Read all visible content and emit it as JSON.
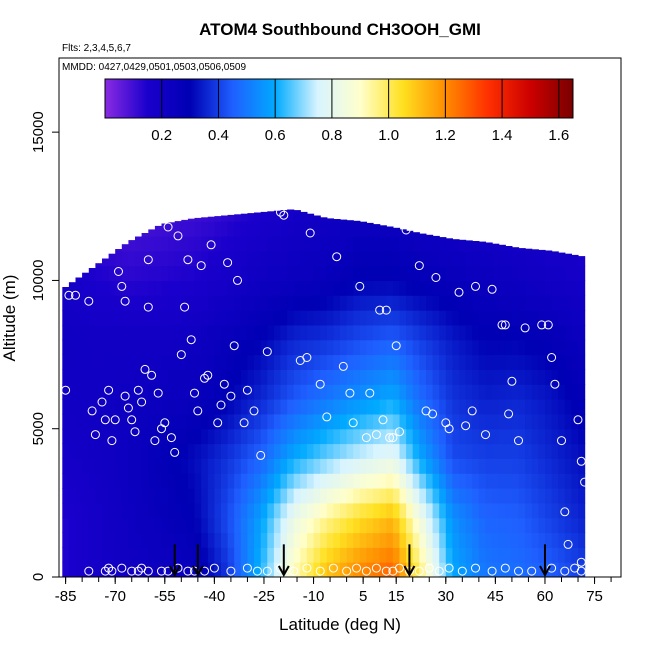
{
  "chart_data": {
    "type": "heatmap",
    "title": "ATOM4 Southbound CH3OOH_GMI",
    "subtitle_flights": "Flts: 2,3,4,5,6,7",
    "subtitle_dates": "MMDD: 0427,0429,0501,0503,0506,0509",
    "xlabel": "Latitude (deg N)",
    "ylabel": "Altitude (m)",
    "xlim": [
      -87,
      83
    ],
    "ylim": [
      0,
      17500
    ],
    "x_ticks": [
      -85,
      -70,
      -55,
      -40,
      -25,
      -10,
      5,
      15,
      30,
      45,
      60,
      75
    ],
    "y_ticks": [
      0,
      5000,
      10000,
      15000
    ],
    "colorbar": {
      "range": [
        0,
        1.65
      ],
      "ticks": [
        0.2,
        0.4,
        0.6,
        0.8,
        1.0,
        1.2,
        1.4,
        1.6
      ],
      "tick_labels": [
        "0.2",
        "0.4",
        "0.6",
        "0.8",
        "1.0",
        "1.2",
        "1.4",
        "1.6"
      ],
      "colors": [
        "#8a2be2",
        "#1a00cc",
        "#0000b4",
        "#1f5fff",
        "#00aaff",
        "#d8f4ff",
        "#ffffcc",
        "#ffe020",
        "#ff8c00",
        "#ff3000",
        "#cc0000",
        "#7a0000"
      ]
    },
    "field_columns": [
      {
        "lat": -86,
        "top": 9700,
        "alt": [
          0,
          2000,
          4000,
          6000,
          8000,
          10000,
          12500
        ],
        "val": [
          0.14,
          0.14,
          0.18,
          0.2,
          0.22,
          0.18,
          0.12
        ]
      },
      {
        "lat": -76,
        "top": 10500,
        "alt": [
          0,
          2000,
          4000,
          6000,
          8000,
          10000,
          12500
        ],
        "val": [
          0.18,
          0.18,
          0.2,
          0.21,
          0.2,
          0.15,
          0.1
        ]
      },
      {
        "lat": -66,
        "top": 11300,
        "alt": [
          0,
          2000,
          4000,
          6000,
          8000,
          10000,
          12500
        ],
        "val": [
          0.21,
          0.22,
          0.23,
          0.22,
          0.2,
          0.13,
          0.08
        ]
      },
      {
        "lat": -56,
        "top": 11900,
        "alt": [
          0,
          2000,
          4000,
          6000,
          8000,
          10000,
          12500
        ],
        "val": [
          0.22,
          0.26,
          0.28,
          0.24,
          0.2,
          0.14,
          0.09
        ]
      },
      {
        "lat": -46,
        "top": 12100,
        "alt": [
          0,
          2000,
          4000,
          6000,
          8000,
          10000,
          12500
        ],
        "val": [
          0.25,
          0.3,
          0.32,
          0.25,
          0.22,
          0.15,
          0.1
        ]
      },
      {
        "lat": -36,
        "top": 12200,
        "alt": [
          0,
          2000,
          4000,
          6000,
          8000,
          10000,
          12500
        ],
        "val": [
          0.38,
          0.42,
          0.38,
          0.3,
          0.26,
          0.18,
          0.12
        ]
      },
      {
        "lat": -26,
        "top": 12300,
        "alt": [
          0,
          2000,
          4000,
          6000,
          8000,
          10000,
          12500
        ],
        "val": [
          0.62,
          0.58,
          0.46,
          0.36,
          0.3,
          0.22,
          0.15
        ]
      },
      {
        "lat": -16,
        "top": 12400,
        "alt": [
          0,
          2000,
          4000,
          6000,
          8000,
          10000,
          12500
        ],
        "val": [
          0.92,
          0.82,
          0.6,
          0.44,
          0.36,
          0.24,
          0.18
        ]
      },
      {
        "lat": -6,
        "top": 12100,
        "alt": [
          0,
          2000,
          4000,
          6000,
          8000,
          10000,
          12500
        ],
        "val": [
          1.12,
          0.95,
          0.68,
          0.5,
          0.38,
          0.26,
          0.2
        ]
      },
      {
        "lat": 4,
        "top": 12000,
        "alt": [
          0,
          2000,
          4000,
          6000,
          8000,
          10000,
          12500
        ],
        "val": [
          1.22,
          1.05,
          0.75,
          0.55,
          0.42,
          0.3,
          0.22
        ]
      },
      {
        "lat": 14,
        "top": 11800,
        "alt": [
          0,
          2000,
          4000,
          6000,
          8000,
          10000,
          12500
        ],
        "val": [
          1.28,
          1.12,
          0.8,
          0.6,
          0.45,
          0.3,
          0.22
        ]
      },
      {
        "lat": 22,
        "top": 11600,
        "alt": [
          0,
          2000,
          4000,
          6000,
          8000,
          10000,
          12500
        ],
        "val": [
          1.0,
          0.85,
          0.6,
          0.48,
          0.4,
          0.28,
          0.2
        ]
      },
      {
        "lat": 32,
        "top": 11400,
        "alt": [
          0,
          2000,
          4000,
          6000,
          8000,
          10000,
          12500
        ],
        "val": [
          0.6,
          0.55,
          0.42,
          0.38,
          0.34,
          0.26,
          0.18
        ]
      },
      {
        "lat": 42,
        "top": 11300,
        "alt": [
          0,
          2000,
          4000,
          6000,
          8000,
          10000,
          12500
        ],
        "val": [
          0.5,
          0.46,
          0.4,
          0.35,
          0.3,
          0.24,
          0.17
        ]
      },
      {
        "lat": 52,
        "top": 11100,
        "alt": [
          0,
          2000,
          4000,
          6000,
          8000,
          10000,
          12500
        ],
        "val": [
          0.48,
          0.45,
          0.4,
          0.36,
          0.3,
          0.22,
          0.16
        ]
      },
      {
        "lat": 62,
        "top": 11000,
        "alt": [
          0,
          2000,
          4000,
          6000,
          8000,
          10000,
          12500
        ],
        "val": [
          0.45,
          0.4,
          0.36,
          0.33,
          0.28,
          0.2,
          0.15
        ]
      },
      {
        "lat": 72,
        "top": 10800,
        "alt": [
          0,
          2000,
          4000,
          6000,
          8000,
          10000,
          12500
        ],
        "val": [
          0.4,
          0.35,
          0.32,
          0.28,
          0.24,
          0.18,
          0.14
        ]
      }
    ],
    "observations": [
      [
        -85,
        6300
      ],
      [
        -84,
        9500
      ],
      [
        -82,
        9500
      ],
      [
        -78,
        9300
      ],
      [
        -77,
        5600
      ],
      [
        -76,
        4800
      ],
      [
        -74,
        5900
      ],
      [
        -73,
        5300
      ],
      [
        -72,
        6300
      ],
      [
        -71,
        4600
      ],
      [
        -70,
        5300
      ],
      [
        -69,
        10300
      ],
      [
        -68,
        9800
      ],
      [
        -67,
        9300
      ],
      [
        -67,
        6100
      ],
      [
        -66,
        5700
      ],
      [
        -65,
        5300
      ],
      [
        -64,
        4900
      ],
      [
        -63,
        6300
      ],
      [
        -62,
        5900
      ],
      [
        -61,
        7000
      ],
      [
        -60,
        10700
      ],
      [
        -60,
        9100
      ],
      [
        -59,
        6800
      ],
      [
        -58,
        4600
      ],
      [
        -57,
        6200
      ],
      [
        -56,
        5000
      ],
      [
        -55,
        5200
      ],
      [
        -54,
        11800
      ],
      [
        -53,
        4700
      ],
      [
        -52,
        4200
      ],
      [
        -51,
        11500
      ],
      [
        -50,
        7500
      ],
      [
        -49,
        9100
      ],
      [
        -48,
        10700
      ],
      [
        -47,
        8000
      ],
      [
        -46,
        6200
      ],
      [
        -45,
        5600
      ],
      [
        -44,
        10500
      ],
      [
        -43,
        6700
      ],
      [
        -42,
        6800
      ],
      [
        -41,
        11200
      ],
      [
        -39,
        5200
      ],
      [
        -38,
        5800
      ],
      [
        -37,
        6500
      ],
      [
        -36,
        10600
      ],
      [
        -35,
        6100
      ],
      [
        -34,
        7800
      ],
      [
        -33,
        10000
      ],
      [
        -31,
        5200
      ],
      [
        -30,
        6300
      ],
      [
        -28,
        5600
      ],
      [
        -26,
        4100
      ],
      [
        -24,
        7600
      ],
      [
        -20,
        12300
      ],
      [
        -19,
        12200
      ],
      [
        -14,
        7300
      ],
      [
        -12,
        7400
      ],
      [
        -11,
        11600
      ],
      [
        -8,
        6500
      ],
      [
        -6,
        5400
      ],
      [
        -3,
        10800
      ],
      [
        -1,
        7100
      ],
      [
        1,
        6200
      ],
      [
        2,
        5200
      ],
      [
        4,
        9800
      ],
      [
        6,
        4700
      ],
      [
        7,
        6200
      ],
      [
        9,
        4800
      ],
      [
        10,
        9000
      ],
      [
        11,
        5300
      ],
      [
        12,
        9000
      ],
      [
        13,
        4700
      ],
      [
        14,
        4700
      ],
      [
        15,
        7800
      ],
      [
        16,
        4900
      ],
      [
        18,
        11700
      ],
      [
        22,
        10500
      ],
      [
        24,
        5600
      ],
      [
        26,
        5500
      ],
      [
        27,
        10100
      ],
      [
        30,
        5200
      ],
      [
        31,
        5000
      ],
      [
        34,
        9600
      ],
      [
        36,
        5100
      ],
      [
        38,
        5600
      ],
      [
        39,
        9800
      ],
      [
        42,
        4800
      ],
      [
        44,
        9700
      ],
      [
        47,
        8500
      ],
      [
        48,
        8500
      ],
      [
        49,
        5500
      ],
      [
        50,
        6600
      ],
      [
        52,
        4600
      ],
      [
        54,
        8400
      ],
      [
        56,
        11500
      ],
      [
        59,
        8500
      ],
      [
        61,
        8500
      ],
      [
        62,
        7400
      ],
      [
        63,
        6500
      ],
      [
        65,
        4600
      ],
      [
        66,
        2200
      ],
      [
        67,
        1100
      ],
      [
        70,
        5300
      ],
      [
        71,
        3900
      ],
      [
        72,
        3200
      ],
      [
        -78,
        200
      ],
      [
        -73,
        200
      ],
      [
        -72,
        300
      ],
      [
        -71,
        200
      ],
      [
        -68,
        300
      ],
      [
        -65,
        200
      ],
      [
        -63,
        200
      ],
      [
        -62,
        300
      ],
      [
        -60,
        200
      ],
      [
        -56,
        200
      ],
      [
        -54,
        200
      ],
      [
        -51,
        300
      ],
      [
        -48,
        200
      ],
      [
        -46,
        200
      ],
      [
        -43,
        200
      ],
      [
        -40,
        300
      ],
      [
        -35,
        200
      ],
      [
        -30,
        300
      ],
      [
        -27,
        200
      ],
      [
        -24,
        200
      ],
      [
        -20,
        300
      ],
      [
        -16,
        200
      ],
      [
        -12,
        300
      ],
      [
        -8,
        200
      ],
      [
        -4,
        300
      ],
      [
        0,
        200
      ],
      [
        3,
        300
      ],
      [
        6,
        200
      ],
      [
        9,
        300
      ],
      [
        12,
        200
      ],
      [
        14,
        200
      ],
      [
        16,
        300
      ],
      [
        19,
        200
      ],
      [
        22,
        200
      ],
      [
        25,
        300
      ],
      [
        28,
        200
      ],
      [
        31,
        300
      ],
      [
        35,
        200
      ],
      [
        39,
        300
      ],
      [
        44,
        200
      ],
      [
        48,
        300
      ],
      [
        52,
        200
      ],
      [
        56,
        200
      ],
      [
        62,
        300
      ],
      [
        66,
        200
      ],
      [
        69,
        300
      ],
      [
        71,
        500
      ],
      [
        71,
        200
      ]
    ],
    "arrows_lat": [
      -52,
      -45,
      -19,
      19,
      60
    ]
  }
}
